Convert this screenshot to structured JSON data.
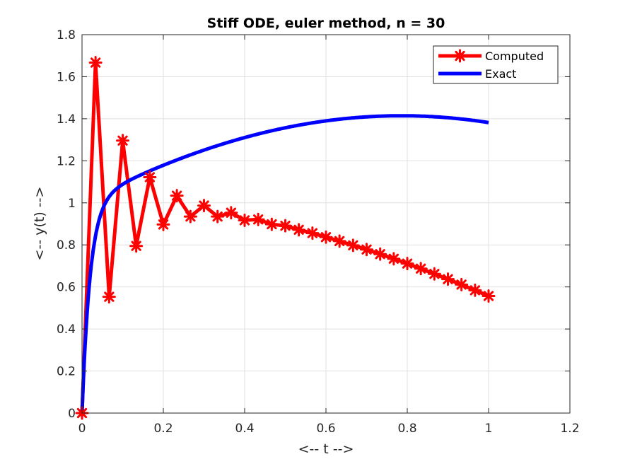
{
  "chart_data": {
    "type": "line",
    "title": "Stiff ODE, euler method, n = 30",
    "xlabel": "<-- t -->",
    "ylabel": "<-- y(t) -->",
    "xlim": [
      0,
      1.2
    ],
    "ylim": [
      0,
      1.8
    ],
    "xticks": [
      "0",
      "0.2",
      "0.4",
      "0.6",
      "0.8",
      "1",
      "1.2"
    ],
    "yticks": [
      "0",
      "0.2",
      "0.4",
      "0.6",
      "0.8",
      "1",
      "1.2",
      "1.4",
      "1.6",
      "1.8"
    ],
    "grid": true,
    "legend_position": "top-right",
    "series": [
      {
        "name": "Computed",
        "color": "#ff0000",
        "marker": "asterisk",
        "x": [
          0,
          0.0333,
          0.0667,
          0.1,
          0.1333,
          0.1667,
          0.2,
          0.2333,
          0.2667,
          0.3,
          0.3333,
          0.3667,
          0.4,
          0.4333,
          0.4667,
          0.5,
          0.5333,
          0.5667,
          0.6,
          0.6333,
          0.6667,
          0.7,
          0.7333,
          0.7667,
          0.8,
          0.8333,
          0.8667,
          0.9,
          0.9333,
          0.9667,
          1.0
        ],
        "y": [
          0,
          1.667,
          0.553,
          1.296,
          0.795,
          1.122,
          0.897,
          1.034,
          0.935,
          0.987,
          0.935,
          0.953,
          0.917,
          0.921,
          0.898,
          0.891,
          0.872,
          0.856,
          0.837,
          0.818,
          0.798,
          0.778,
          0.756,
          0.734,
          0.711,
          0.687,
          0.662,
          0.637,
          0.611,
          0.584,
          0.557
        ]
      },
      {
        "name": "Exact",
        "color": "#0000ff",
        "function": "y = sin(t) + cos(t) - exp(-50 t)",
        "x_range": [
          0,
          1
        ]
      }
    ]
  }
}
